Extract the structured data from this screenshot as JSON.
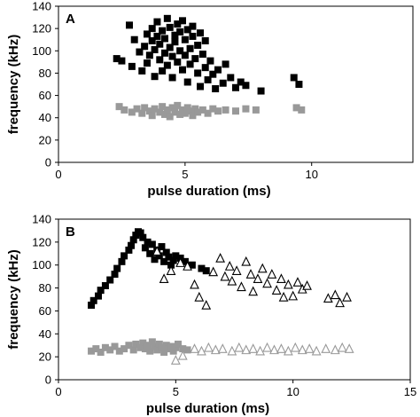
{
  "chart_data": [
    {
      "type": "scatter",
      "panel_label": "A",
      "xlabel": "pulse duration (ms)",
      "ylabel": "frequency (kHz)",
      "xlim": [
        0,
        14
      ],
      "ylim": [
        0,
        140
      ],
      "xticks": [
        0,
        5,
        10
      ],
      "yticks": [
        0,
        20,
        40,
        60,
        80,
        100,
        120,
        140
      ],
      "grid": false,
      "series": [
        {
          "marker": "square",
          "color": "#000000",
          "points": [
            [
              2.3,
              93
            ],
            [
              2.5,
              91
            ],
            [
              2.8,
              123
            ],
            [
              3.0,
              110
            ],
            [
              2.9,
              86
            ],
            [
              3.2,
              99
            ],
            [
              3.3,
              82
            ],
            [
              3.4,
              104
            ],
            [
              3.5,
              115
            ],
            [
              3.5,
              89
            ],
            [
              3.6,
              96
            ],
            [
              3.7,
              120
            ],
            [
              3.7,
              109
            ],
            [
              3.8,
              77
            ],
            [
              3.8,
              101
            ],
            [
              3.9,
              113
            ],
            [
              3.9,
              126
            ],
            [
              4.0,
              92
            ],
            [
              4.0,
              106
            ],
            [
              4.1,
              118
            ],
            [
              4.1,
              82
            ],
            [
              4.2,
              98
            ],
            [
              4.2,
              111
            ],
            [
              4.3,
              129
            ],
            [
              4.3,
              87
            ],
            [
              4.4,
              103
            ],
            [
              4.4,
              121
            ],
            [
              4.5,
              76
            ],
            [
              4.5,
              95
            ],
            [
              4.6,
              114
            ],
            [
              4.6,
              108
            ],
            [
              4.7,
              124
            ],
            [
              4.7,
              90
            ],
            [
              4.8,
              100
            ],
            [
              4.8,
              117
            ],
            [
              4.9,
              83
            ],
            [
              4.9,
              127
            ],
            [
              5.0,
              96
            ],
            [
              5.0,
              110
            ],
            [
              5.1,
              119
            ],
            [
              5.1,
              72
            ],
            [
              5.2,
              102
            ],
            [
              5.2,
              88
            ],
            [
              5.3,
              122
            ],
            [
              5.3,
              113
            ],
            [
              5.4,
              93
            ],
            [
              5.5,
              105
            ],
            [
              5.5,
              80
            ],
            [
              5.6,
              116
            ],
            [
              5.6,
              68
            ],
            [
              5.7,
              97
            ],
            [
              5.8,
              85
            ],
            [
              5.8,
              109
            ],
            [
              5.9,
              74
            ],
            [
              6.0,
              91
            ],
            [
              6.1,
              79
            ],
            [
              6.2,
              66
            ],
            [
              6.3,
              83
            ],
            [
              6.5,
              71
            ],
            [
              6.6,
              88
            ],
            [
              6.8,
              76
            ],
            [
              7.0,
              67
            ],
            [
              7.2,
              72
            ],
            [
              7.4,
              69
            ],
            [
              8.0,
              64
            ],
            [
              9.3,
              76
            ],
            [
              9.5,
              70
            ]
          ]
        },
        {
          "marker": "square",
          "color": "#999999",
          "points": [
            [
              2.4,
              50
            ],
            [
              2.6,
              47
            ],
            [
              2.9,
              45
            ],
            [
              3.1,
              48
            ],
            [
              3.3,
              44
            ],
            [
              3.4,
              49
            ],
            [
              3.6,
              46
            ],
            [
              3.7,
              42
            ],
            [
              3.8,
              48
            ],
            [
              4.0,
              45
            ],
            [
              4.1,
              50
            ],
            [
              4.2,
              43
            ],
            [
              4.3,
              47
            ],
            [
              4.4,
              41
            ],
            [
              4.5,
              49
            ],
            [
              4.6,
              45
            ],
            [
              4.7,
              51
            ],
            [
              4.8,
              43
            ],
            [
              4.9,
              47
            ],
            [
              5.0,
              44
            ],
            [
              5.1,
              49
            ],
            [
              5.2,
              46
            ],
            [
              5.3,
              42
            ],
            [
              5.4,
              48
            ],
            [
              5.5,
              45
            ],
            [
              5.7,
              47
            ],
            [
              5.9,
              44
            ],
            [
              6.1,
              48
            ],
            [
              6.3,
              46
            ],
            [
              6.6,
              47
            ],
            [
              7.0,
              46
            ],
            [
              7.4,
              48
            ],
            [
              7.8,
              47
            ],
            [
              9.4,
              49
            ],
            [
              9.6,
              47
            ]
          ]
        }
      ]
    },
    {
      "type": "scatter",
      "panel_label": "B",
      "xlabel": "pulse duration (ms)",
      "ylabel": "frequency (kHz)",
      "xlim": [
        0,
        15
      ],
      "ylim": [
        0,
        140
      ],
      "xticks": [
        0,
        5,
        10,
        15
      ],
      "yticks": [
        0,
        20,
        40,
        60,
        80,
        100,
        120,
        140
      ],
      "grid": false,
      "series": [
        {
          "marker": "square",
          "color": "#000000",
          "points": [
            [
              1.4,
              65
            ],
            [
              1.5,
              69
            ],
            [
              1.7,
              73
            ],
            [
              1.8,
              78
            ],
            [
              2.0,
              82
            ],
            [
              2.2,
              87
            ],
            [
              2.4,
              92
            ],
            [
              2.5,
              97
            ],
            [
              2.7,
              103
            ],
            [
              2.8,
              108
            ],
            [
              3.0,
              113
            ],
            [
              3.1,
              117
            ],
            [
              3.2,
              122
            ],
            [
              3.3,
              126
            ],
            [
              3.4,
              129
            ],
            [
              3.5,
              128
            ],
            [
              3.6,
              124
            ],
            [
              3.7,
              115
            ],
            [
              3.8,
              120
            ],
            [
              3.9,
              110
            ],
            [
              4.0,
              118
            ],
            [
              4.1,
              105
            ],
            [
              4.2,
              113
            ],
            [
              4.3,
              108
            ],
            [
              4.4,
              116
            ],
            [
              4.5,
              103
            ],
            [
              4.6,
              111
            ],
            [
              4.7,
              107
            ],
            [
              4.8,
              100
            ],
            [
              4.9,
              104
            ],
            [
              5.0,
              108
            ],
            [
              5.2,
              106
            ],
            [
              5.4,
              103
            ],
            [
              5.7,
              100
            ],
            [
              6.1,
              97
            ],
            [
              6.3,
              95
            ]
          ]
        },
        {
          "marker": "triangle",
          "color": "#000000",
          "points": [
            [
              4.2,
              112
            ],
            [
              4.5,
              88
            ],
            [
              4.8,
              95
            ],
            [
              5.2,
              102
            ],
            [
              5.5,
              99
            ],
            [
              5.8,
              83
            ],
            [
              6.0,
              72
            ],
            [
              6.3,
              65
            ],
            [
              6.6,
              94
            ],
            [
              6.9,
              106
            ],
            [
              7.1,
              90
            ],
            [
              7.3,
              99
            ],
            [
              7.4,
              86
            ],
            [
              7.6,
              95
            ],
            [
              7.8,
              81
            ],
            [
              8.0,
              103
            ],
            [
              8.2,
              92
            ],
            [
              8.3,
              77
            ],
            [
              8.5,
              88
            ],
            [
              8.7,
              97
            ],
            [
              8.9,
              84
            ],
            [
              9.1,
              92
            ],
            [
              9.3,
              78
            ],
            [
              9.5,
              88
            ],
            [
              9.6,
              72
            ],
            [
              9.8,
              83
            ],
            [
              10.0,
              73
            ],
            [
              10.2,
              85
            ],
            [
              10.4,
              79
            ],
            [
              10.6,
              82
            ],
            [
              11.5,
              71
            ],
            [
              11.8,
              74
            ],
            [
              12.0,
              67
            ],
            [
              12.3,
              72
            ]
          ]
        },
        {
          "marker": "square",
          "color": "#999999",
          "points": [
            [
              1.4,
              25
            ],
            [
              1.6,
              27
            ],
            [
              1.8,
              24
            ],
            [
              2.0,
              28
            ],
            [
              2.2,
              26
            ],
            [
              2.4,
              29
            ],
            [
              2.6,
              25
            ],
            [
              2.8,
              27
            ],
            [
              3.0,
              30
            ],
            [
              3.2,
              26
            ],
            [
              3.3,
              31
            ],
            [
              3.5,
              28
            ],
            [
              3.6,
              32
            ],
            [
              3.7,
              27
            ],
            [
              3.8,
              30
            ],
            [
              3.9,
              25
            ],
            [
              4.0,
              33
            ],
            [
              4.1,
              29
            ],
            [
              4.2,
              26
            ],
            [
              4.3,
              31
            ],
            [
              4.4,
              28
            ],
            [
              4.5,
              24
            ],
            [
              4.6,
              30
            ],
            [
              4.7,
              27
            ],
            [
              4.8,
              29
            ],
            [
              4.9,
              25
            ],
            [
              5.0,
              28
            ],
            [
              5.1,
              31
            ],
            [
              5.3,
              27
            ],
            [
              5.5,
              26
            ]
          ]
        },
        {
          "marker": "triangle",
          "color": "#999999",
          "points": [
            [
              5.0,
              17
            ],
            [
              5.3,
              21
            ],
            [
              5.8,
              27
            ],
            [
              6.1,
              25
            ],
            [
              6.4,
              28
            ],
            [
              6.7,
              26
            ],
            [
              7.0,
              27
            ],
            [
              7.4,
              25
            ],
            [
              7.7,
              28
            ],
            [
              8.0,
              26
            ],
            [
              8.3,
              27
            ],
            [
              8.6,
              25
            ],
            [
              8.9,
              28
            ],
            [
              9.2,
              26
            ],
            [
              9.5,
              27
            ],
            [
              9.8,
              25
            ],
            [
              10.1,
              28
            ],
            [
              10.4,
              26
            ],
            [
              10.7,
              27
            ],
            [
              11.0,
              25
            ],
            [
              11.4,
              27
            ],
            [
              11.8,
              26
            ],
            [
              12.1,
              28
            ],
            [
              12.4,
              27
            ]
          ]
        }
      ]
    }
  ]
}
